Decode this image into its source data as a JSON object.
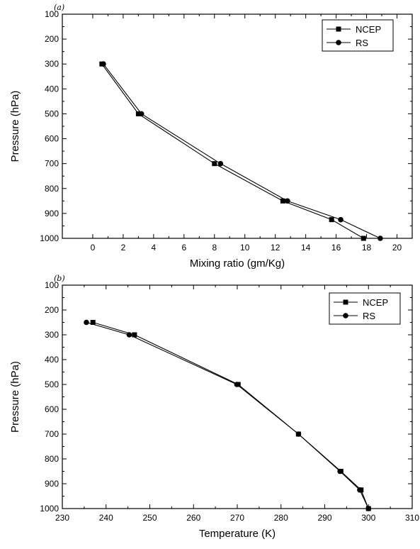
{
  "chart_data": [
    {
      "type": "line",
      "panel_label": "(a)",
      "xlabel": "Mixing ratio (gm/Kg)",
      "ylabel": "Pressure (hPa)",
      "xlim": [
        -2,
        21
      ],
      "ylim": [
        1000,
        100
      ],
      "y_inverted": true,
      "xticks": [
        0,
        2,
        4,
        6,
        8,
        10,
        12,
        14,
        16,
        18,
        20
      ],
      "yticks": [
        100,
        200,
        300,
        400,
        500,
        600,
        700,
        800,
        900,
        1000
      ],
      "grid": false,
      "legend_position": "top-right",
      "series": [
        {
          "name": "NCEP",
          "marker": "square",
          "points": [
            {
              "x": 0.6,
              "y": 300
            },
            {
              "x": 3.0,
              "y": 500
            },
            {
              "x": 8.0,
              "y": 700
            },
            {
              "x": 12.5,
              "y": 850
            },
            {
              "x": 15.7,
              "y": 925
            },
            {
              "x": 17.8,
              "y": 1000
            }
          ]
        },
        {
          "name": "RS",
          "marker": "circle",
          "points": [
            {
              "x": 0.7,
              "y": 300
            },
            {
              "x": 3.2,
              "y": 500
            },
            {
              "x": 8.4,
              "y": 700
            },
            {
              "x": 12.8,
              "y": 850
            },
            {
              "x": 16.3,
              "y": 925
            },
            {
              "x": 18.9,
              "y": 1000
            }
          ]
        }
      ]
    },
    {
      "type": "line",
      "panel_label": "(b)",
      "xlabel": "Temperature (K)",
      "ylabel": "Pressure (hPa)",
      "xlim": [
        230,
        310
      ],
      "ylim": [
        1000,
        100
      ],
      "y_inverted": true,
      "xticks": [
        230,
        240,
        250,
        260,
        270,
        280,
        290,
        300,
        310
      ],
      "yticks": [
        100,
        200,
        300,
        400,
        500,
        600,
        700,
        800,
        900,
        1000
      ],
      "grid": false,
      "legend_position": "top-right",
      "series": [
        {
          "name": "NCEP",
          "marker": "square",
          "points": [
            {
              "x": 237.0,
              "y": 250
            },
            {
              "x": 246.5,
              "y": 300
            },
            {
              "x": 270.2,
              "y": 500
            },
            {
              "x": 284.0,
              "y": 700
            },
            {
              "x": 293.7,
              "y": 850
            },
            {
              "x": 298.3,
              "y": 925
            },
            {
              "x": 300.0,
              "y": 1000
            }
          ]
        },
        {
          "name": "RS",
          "marker": "circle",
          "points": [
            {
              "x": 235.5,
              "y": 250
            },
            {
              "x": 245.3,
              "y": 300
            },
            {
              "x": 269.9,
              "y": 500
            },
            {
              "x": 284.0,
              "y": 700
            },
            {
              "x": 293.5,
              "y": 850
            },
            {
              "x": 298.0,
              "y": 925
            },
            {
              "x": 300.0,
              "y": 1000
            }
          ]
        }
      ]
    }
  ]
}
